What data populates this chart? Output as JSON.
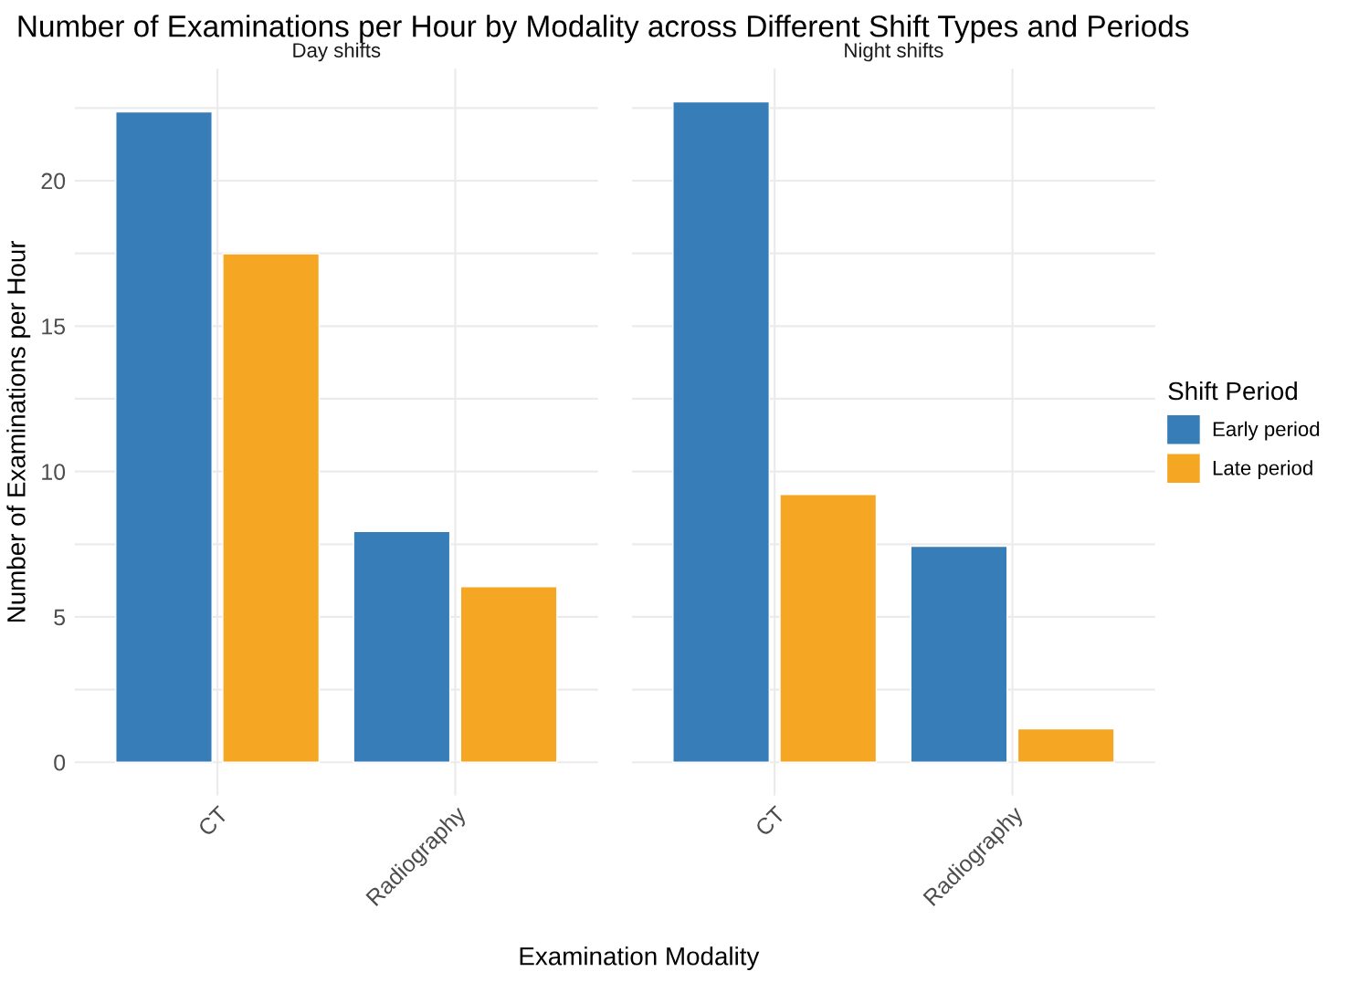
{
  "chart_data": [
    {
      "type": "bar",
      "title": "Number of Examinations per Hour by Modality across Different Shift Types and Periods",
      "subtitle": "Day shifts",
      "xlabel": "Examination Modality",
      "ylabel": "Number of Examinations per Hour",
      "categories": [
        "CT",
        "Radiography"
      ],
      "series": [
        {
          "color": "#377eb8",
          "values": [
            22.37,
            7.94
          ]
        },
        {
          "color": "#f5a623",
          "values": [
            17.49,
            6.04
          ]
        }
      ],
      "ylim": [
        -1.14,
        23.85
      ],
      "yticks": [
        0,
        {
          "value": 2.5,
          "label": null
        },
        5,
        {
          "value": 7.5,
          "label": null
        },
        10,
        {
          "value": 12.5,
          "label": null
        },
        15,
        {
          "value": 17.5,
          "label": null
        },
        20,
        {
          "value": 22.5,
          "label": null
        }
      ],
      "grid": true
    },
    {
      "type": "bar",
      "subtitle": "Night shifts",
      "categories": [
        "CT",
        "Radiography"
      ],
      "legend_title": "Shift Period",
      "series": [
        {
          "name": "Early period",
          "color": "#377eb8",
          "values": [
            22.71,
            7.43
          ]
        },
        {
          "name": "Late period",
          "color": "#f5a623",
          "values": [
            9.21,
            1.15
          ]
        }
      ],
      "ylim": [
        -1.14,
        23.85
      ],
      "yticks": [
        0,
        {
          "value": 2.5,
          "label": null
        },
        5,
        {
          "value": 7.5,
          "label": null
        },
        10,
        {
          "value": 12.5,
          "label": null
        },
        15,
        {
          "value": 17.5,
          "label": null
        },
        20,
        {
          "value": 22.5,
          "label": null
        }
      ],
      "grid": true,
      "legend": "right",
      "tick_labels": "x"
    }
  ]
}
